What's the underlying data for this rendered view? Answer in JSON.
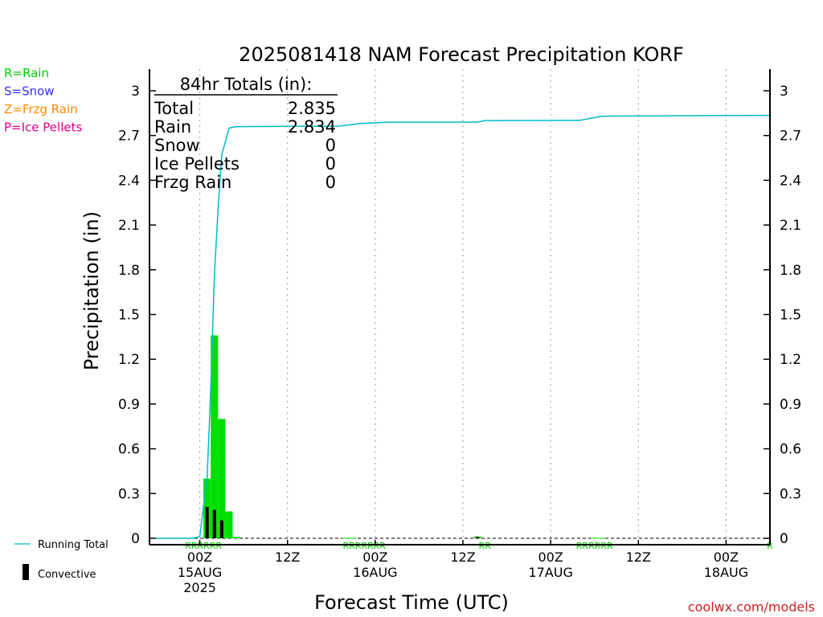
{
  "page": {
    "title": "2025081418 NAM Forecast Precipitation KORF",
    "credit": "coolwx.com/models"
  },
  "legend_types": [
    {
      "label": "R=Rain",
      "color": "#00cc00"
    },
    {
      "label": "S=Snow",
      "color": "#3333ff"
    },
    {
      "label": "Z=Frzg Rain",
      "color": "#ff8800"
    },
    {
      "label": "P=Ice Pellets",
      "color": "#dd0088"
    }
  ],
  "legend_lines": {
    "running_total": {
      "label": "Running Total",
      "color": "#00bbcc"
    },
    "convective": {
      "label": "Convective",
      "color": "#000000"
    }
  },
  "totals_box": {
    "heading": "84hr Totals (in):",
    "rows": [
      {
        "label": "Total",
        "value": "2.835"
      },
      {
        "label": "Rain",
        "value": "2.834"
      },
      {
        "label": "Snow",
        "value": "0"
      },
      {
        "label": "Ice Pellets",
        "value": "0"
      },
      {
        "label": "Frzg Rain",
        "value": "0"
      }
    ]
  },
  "chart_data": {
    "type": "bar",
    "title": "2025081418 NAM Forecast Precipitation KORF",
    "xlabel": "Forecast Time (UTC)",
    "ylabel": "Precipitation (in)",
    "x_units": "hours after 2025-08-14 18Z",
    "xlim": [
      0,
      84
    ],
    "ylim": [
      0,
      3.15
    ],
    "y_ticks": [
      "0",
      "0.3",
      "0.6",
      "0.9",
      "1.2",
      "1.5",
      "1.8",
      "2.1",
      "2.4",
      "2.7",
      "3"
    ],
    "x_ticks": [
      {
        "x": 6,
        "lines": [
          "00Z",
          "15AUG",
          "2025"
        ]
      },
      {
        "x": 18,
        "lines": [
          "12Z"
        ]
      },
      {
        "x": 30,
        "lines": [
          "00Z",
          "16AUG"
        ]
      },
      {
        "x": 42,
        "lines": [
          "12Z"
        ]
      },
      {
        "x": 54,
        "lines": [
          "00Z",
          "17AUG"
        ]
      },
      {
        "x": 66,
        "lines": [
          "12Z"
        ]
      },
      {
        "x": 78,
        "lines": [
          "00Z",
          "18AUG"
        ]
      }
    ],
    "grid": "vertical dotted at x ticks",
    "bar_width_hours": 1,
    "series": [
      {
        "name": "Rain",
        "color": "#00dd00",
        "bars": [
          [
            7,
            0.4
          ],
          [
            8,
            1.36
          ],
          [
            9,
            0.8
          ],
          [
            10,
            0.18
          ],
          [
            11,
            0.01
          ],
          [
            26,
            0.003
          ],
          [
            27,
            0.003
          ],
          [
            44,
            0.012
          ],
          [
            60,
            0.003
          ],
          [
            61,
            0.003
          ]
        ]
      },
      {
        "name": "Convective",
        "color": "#000000",
        "bars": [
          [
            7,
            0.21
          ],
          [
            8,
            0.19
          ],
          [
            9,
            0.12
          ],
          [
            44,
            0.008
          ]
        ]
      },
      {
        "name": "Running Total",
        "color": "#00bbcc",
        "type": "line",
        "points": [
          [
            0,
            0
          ],
          [
            5,
            0
          ],
          [
            6,
            0.01
          ],
          [
            7,
            0.41
          ],
          [
            7.5,
            1.0
          ],
          [
            8,
            1.77
          ],
          [
            8.5,
            2.2
          ],
          [
            9,
            2.57
          ],
          [
            10,
            2.75
          ],
          [
            11,
            2.76
          ],
          [
            25,
            2.763
          ],
          [
            28,
            2.78
          ],
          [
            32,
            2.79
          ],
          [
            44,
            2.79
          ],
          [
            45,
            2.8
          ],
          [
            58,
            2.802
          ],
          [
            60,
            2.82
          ],
          [
            61,
            2.83
          ],
          [
            84,
            2.835
          ]
        ]
      }
    ],
    "type_markers": [
      {
        "x": 6.5,
        "label": "RRRRRR"
      },
      {
        "x": 28.5,
        "label": "RRRRRRR"
      },
      {
        "x": 45,
        "label": "RR"
      },
      {
        "x": 60,
        "label": "RRRRRR"
      },
      {
        "x": 84,
        "label": "R"
      }
    ]
  }
}
